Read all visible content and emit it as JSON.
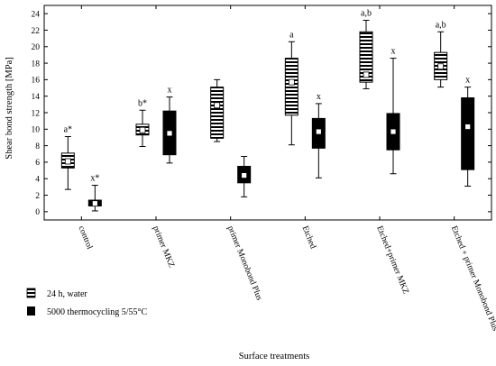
{
  "chart_data": {
    "type": "box",
    "ylabel": "Shear bond strength [MPa]",
    "xlabel": "Surface treatments",
    "ylim": [
      -1,
      25
    ],
    "yticks": [
      0,
      2,
      4,
      6,
      8,
      10,
      12,
      14,
      16,
      18,
      20,
      22,
      24
    ],
    "categories": [
      "control",
      "primer MKZ",
      "primer Monobond Plus",
      "Etched",
      "Etched+primer MKZ",
      "Etched + primer Monobond Plus"
    ],
    "series": [
      {
        "name": "24 h, water",
        "pattern": "horizontal-stripes",
        "boxes": [
          {
            "whisker_low": 2.7,
            "q1": 5.3,
            "median": 6.1,
            "q3": 7.1,
            "whisker_high": 9.1,
            "label": "a*"
          },
          {
            "whisker_low": 7.9,
            "q1": 9.3,
            "median": 9.9,
            "q3": 10.6,
            "whisker_high": 12.3,
            "label": "b*"
          },
          {
            "whisker_low": 8.5,
            "q1": 8.9,
            "median": 12.9,
            "q3": 15.1,
            "whisker_high": 16.0,
            "label": ""
          },
          {
            "whisker_low": 8.1,
            "q1": 11.7,
            "median": 15.7,
            "q3": 18.6,
            "whisker_high": 20.6,
            "label": "a"
          },
          {
            "whisker_low": 14.9,
            "q1": 15.7,
            "median": 16.6,
            "q3": 21.8,
            "whisker_high": 23.2,
            "label": "a,b"
          },
          {
            "whisker_low": 15.1,
            "q1": 16.0,
            "median": 17.6,
            "q3": 19.3,
            "whisker_high": 21.8,
            "label": "a,b"
          }
        ]
      },
      {
        "name": "5000 thermocycling 5/55°C",
        "pattern": "solid",
        "boxes": [
          {
            "whisker_low": 0.1,
            "q1": 0.7,
            "median": 1.0,
            "q3": 1.4,
            "whisker_high": 3.2,
            "label": "x*"
          },
          {
            "whisker_low": 5.9,
            "q1": 6.9,
            "median": 9.5,
            "q3": 12.2,
            "whisker_high": 13.9,
            "label": "x"
          },
          {
            "whisker_low": 1.8,
            "q1": 3.5,
            "median": 4.4,
            "q3": 5.5,
            "whisker_high": 6.7,
            "label": ""
          },
          {
            "whisker_low": 4.1,
            "q1": 7.7,
            "median": 9.7,
            "q3": 11.3,
            "whisker_high": 13.1,
            "label": "x"
          },
          {
            "whisker_low": 4.6,
            "q1": 7.5,
            "median": 9.7,
            "q3": 11.9,
            "whisker_high": 18.6,
            "label": "x"
          },
          {
            "whisker_low": 3.1,
            "q1": 5.1,
            "median": 10.3,
            "q3": 13.8,
            "whisker_high": 15.1,
            "label": "x"
          }
        ]
      }
    ],
    "legend_position": "bottom-left"
  }
}
